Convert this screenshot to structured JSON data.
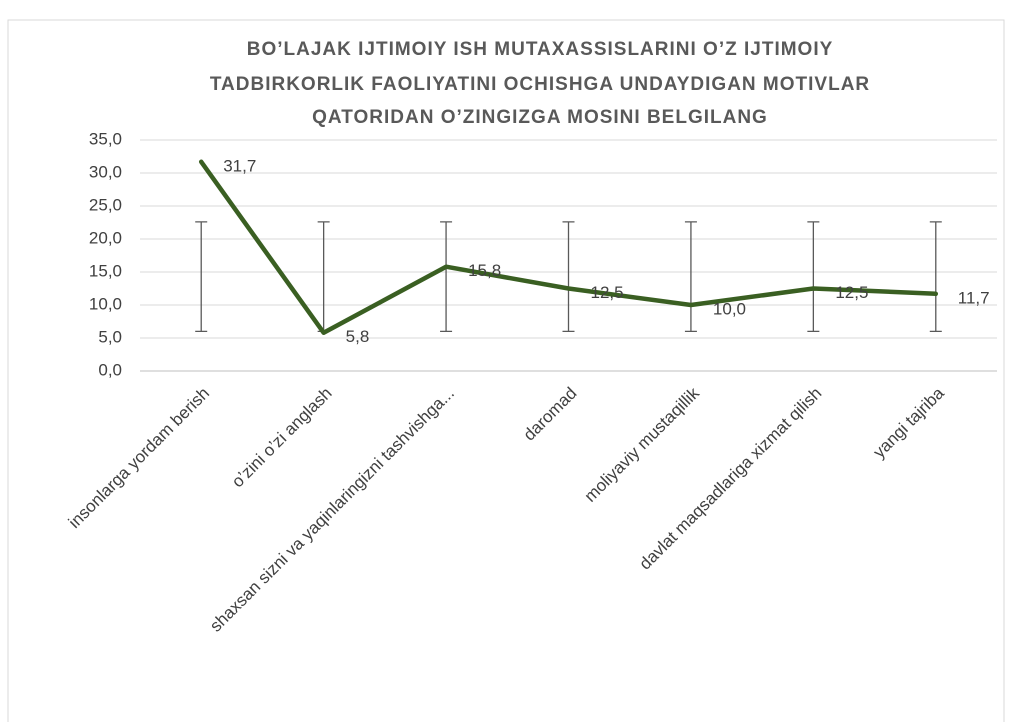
{
  "chart_data": {
    "type": "line",
    "title": [
      "BO’LAJAK IJTIMOIY ISH MUTAXASSISLARINI O’Z IJTIMOIY",
      "TADBIRKORLIK FAOLIYATINI OCHISHGA UNDAYDIGAN MOTIVLAR",
      "QATORIDAN O’ZINGIZGA MOSINI BELGILANG"
    ],
    "categories": [
      "insonlarga yordam berish",
      "o’zini o’zi anglash",
      "shaxsan sizni va yaqinlaringizni tashvishga...",
      "daromad",
      "moliyaviy mustaqillik",
      "davlat maqsadlariga xizmat qilish",
      "yangi tajriba"
    ],
    "values": [
      31.7,
      5.8,
      15.8,
      12.5,
      10.0,
      12.5,
      11.7
    ],
    "value_labels": [
      "31,7",
      "5,8",
      "15,8",
      "12,5",
      "10,0",
      "12,5",
      "11,7"
    ],
    "color": "#3a5f22",
    "error_bars": {
      "center": 14.3,
      "error": 8.3
    },
    "ylim": [
      0,
      35
    ],
    "yticks": [
      {
        "value": 0,
        "label": "0,0"
      },
      {
        "value": 5,
        "label": "5,0"
      },
      {
        "value": 10,
        "label": "10,0"
      },
      {
        "value": 15,
        "label": "15,0"
      },
      {
        "value": 20,
        "label": "20,0"
      },
      {
        "value": 25,
        "label": "25,0"
      },
      {
        "value": 30,
        "label": "30,0"
      },
      {
        "value": 35,
        "label": "35,0"
      }
    ],
    "grid": true
  }
}
